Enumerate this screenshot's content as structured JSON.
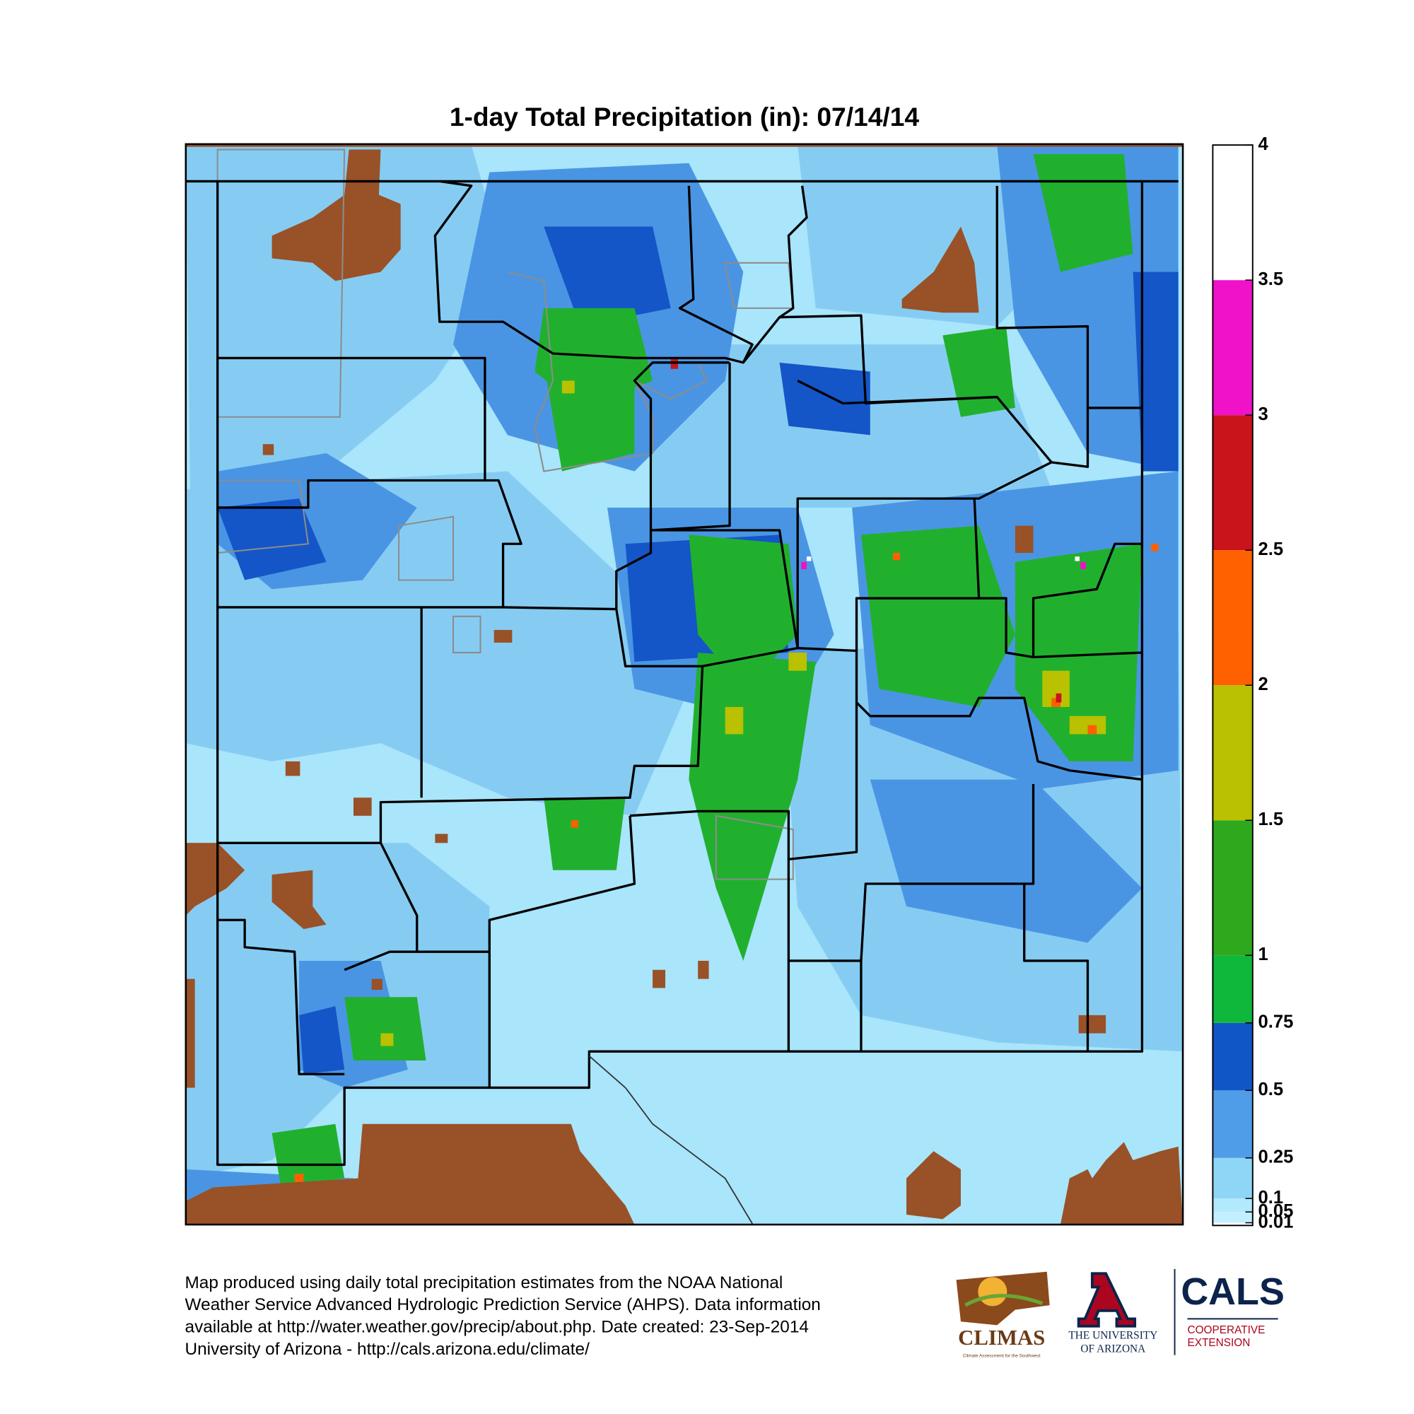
{
  "chart_data": {
    "type": "colorbar-map",
    "title": "1-day Total Precipitation (in): 07/14/14",
    "yticks": [
      0.01,
      0.05,
      0.1,
      0.25,
      0.5,
      0.75,
      1,
      1.5,
      2,
      2.5,
      3,
      3.5,
      4
    ],
    "ylim": [
      0,
      4
    ],
    "colors": [
      "#c2efff",
      "#b3e9fd",
      "#8fd6f6",
      "#4f9de8",
      "#1156c6",
      "#0fb83a",
      "#2ea81c",
      "#b9c100",
      "#ff6000",
      "#c8141a",
      "#f012c8",
      "#ffffff"
    ]
  },
  "footer": {
    "lines": [
      "Map produced using daily total precipitation estimates from the NOAA National",
      "Weather Service Advanced Hydrologic Prediction Service (AHPS). Data information",
      "available at http://water.weather.gov/precip/about.php. Date created: 23-Sep-2014",
      "University of Arizona - http://cals.arizona.edu/climate/"
    ]
  },
  "logos": {
    "climas": "CLIMAS",
    "climas_tagline": "Climate Assessment for the Southwest",
    "ua_line1": "THE UNIVERSITY",
    "ua_line2": "OF ARIZONA",
    "cals": "CALS",
    "cals_line1": "COOPERATIVE",
    "cals_line2": "EXTENSION"
  }
}
